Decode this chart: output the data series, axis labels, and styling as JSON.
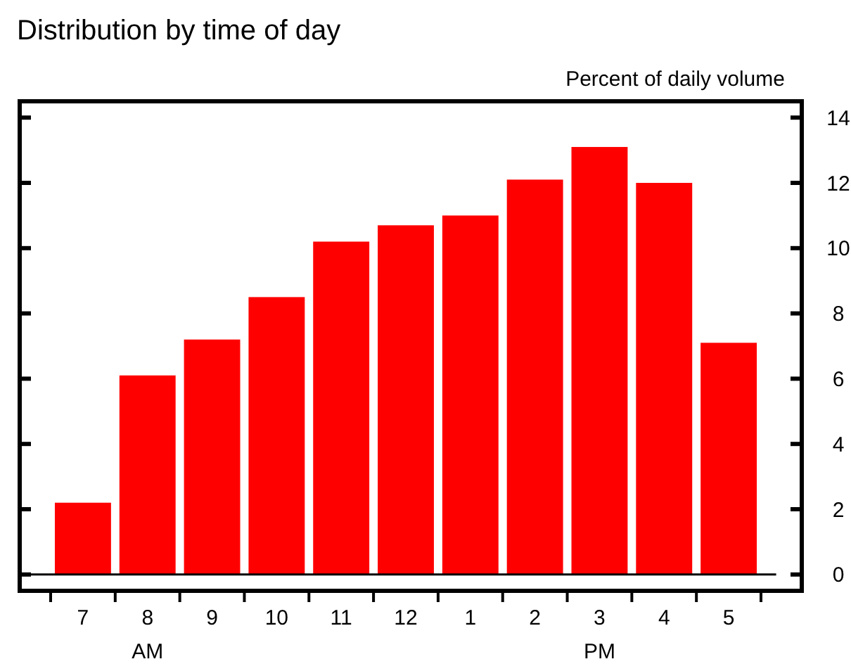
{
  "chart_data": {
    "type": "bar",
    "title": "Distribution by time of day",
    "ylabel": "Percent of daily volume",
    "categories": [
      "7",
      "8",
      "9",
      "10",
      "11",
      "12",
      "1",
      "2",
      "3",
      "4",
      "5"
    ],
    "values": [
      2.2,
      6.1,
      7.2,
      8.5,
      10.2,
      10.7,
      11.0,
      12.1,
      13.1,
      12.0,
      7.1
    ],
    "color": "#ff0000",
    "ylim": [
      -0.5,
      14.5
    ],
    "yticks": [
      0,
      2,
      4,
      6,
      8,
      10,
      12,
      14
    ],
    "annotations": [
      "AM",
      "PM"
    ]
  }
}
